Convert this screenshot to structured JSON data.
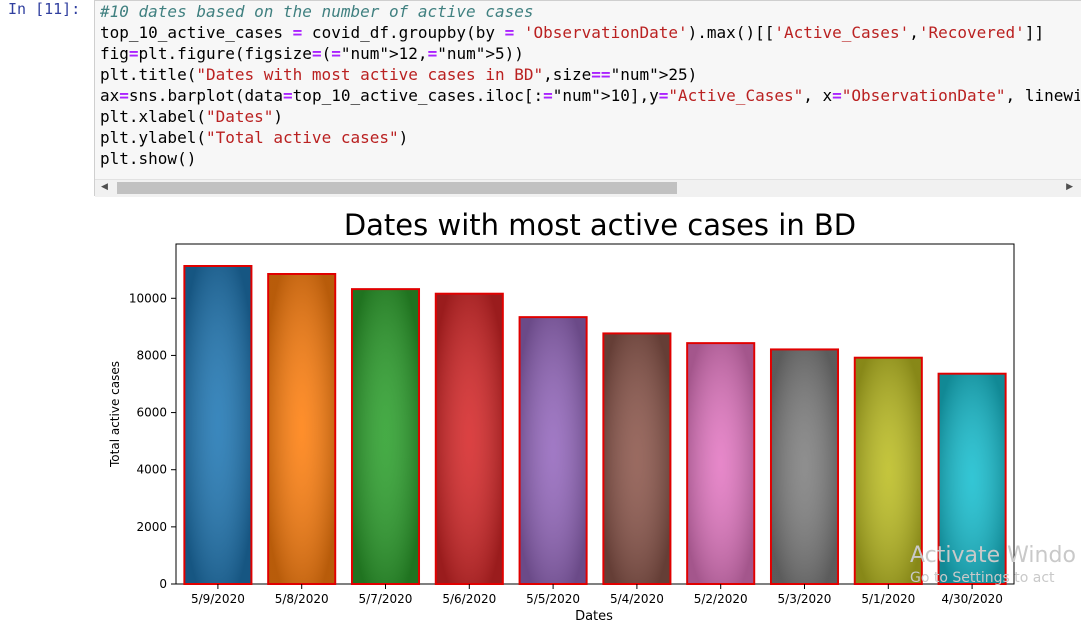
{
  "cell": {
    "prompt": "In [11]:",
    "code_lines": [
      "#10 dates based on the number of active cases",
      "top_10_active_cases = covid_df.groupby(by = 'ObservationDate').max()[['Active_Cases','Recovered']]",
      "fig=plt.figure(figsize=(12,5))",
      "plt.title(\"Dates with most active cases in BD\",size=25)",
      "ax=sns.barplot(data=top_10_active_cases.iloc[:10],y=\"Active_Cases\", x=\"ObservationDate\", linewidth",
      "plt.xlabel(\"Dates\")",
      "plt.ylabel(\"Total active cases\")",
      "plt.show()"
    ]
  },
  "chart_data": {
    "type": "bar",
    "title": "Dates with most active cases in BD",
    "xlabel": "Dates",
    "ylabel": "Total active cases",
    "categories": [
      "5/9/2020",
      "5/8/2020",
      "5/7/2020",
      "5/6/2020",
      "5/5/2020",
      "5/4/2020",
      "5/2/2020",
      "5/3/2020",
      "5/1/2020",
      "4/30/2020"
    ],
    "values": [
      11130,
      10850,
      10320,
      10160,
      9340,
      8770,
      8430,
      8210,
      7920,
      7360
    ],
    "ylim": [
      0,
      11900
    ],
    "yticks": [
      0,
      2000,
      4000,
      6000,
      8000,
      10000
    ],
    "colors": [
      "#1f77b4",
      "#ff7f0e",
      "#2ca02c",
      "#d62728",
      "#9467bd",
      "#8c564b",
      "#e377c2",
      "#7f7f7f",
      "#bcbd22",
      "#17becf"
    ],
    "edge_color": "#e00000",
    "grid": false,
    "legend": "none"
  },
  "watermark": {
    "line1": "Activate Windo",
    "line2": "Go to Settings to act"
  }
}
